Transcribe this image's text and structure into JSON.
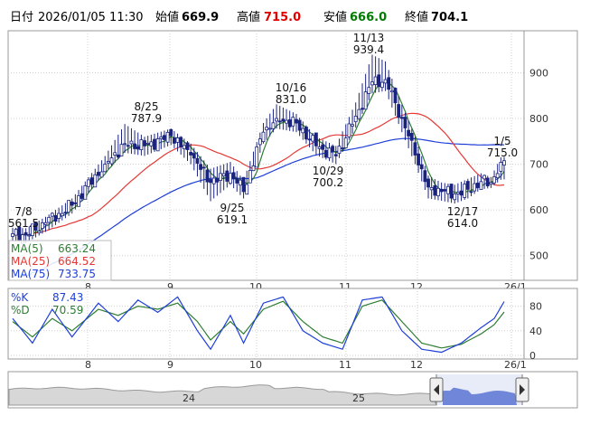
{
  "header": {
    "date_label": "日付",
    "datetime": "2026/01/05 11:30",
    "open_label": "始値",
    "open": "669.9",
    "high_label": "高値",
    "high": "715.0",
    "low_label": "安値",
    "low": "666.0",
    "close_label": "終値",
    "close": "704.1"
  },
  "colors": {
    "up": "#ffffff",
    "down": "#1a237e",
    "candle_border": "#1a237e",
    "ma5": "#2e7d32",
    "ma25": "#e53935",
    "ma75": "#1e3fd8",
    "k": "#1e3fd8",
    "d": "#2e7d32",
    "volume_fill": "#6f86d9"
  },
  "chart_data": [
    {
      "type": "candlestick",
      "ylim": [
        450,
        980
      ],
      "yticks": [
        "500",
        "600",
        "700",
        "800",
        "900"
      ],
      "xticks": [
        "8",
        "9",
        "10",
        "11",
        "12",
        "26/1"
      ],
      "moving_averages": [
        {
          "name": "MA(5)",
          "value": "663.24"
        },
        {
          "name": "MA(25)",
          "value": "664.52"
        },
        {
          "name": "MA(75)",
          "value": "733.75"
        }
      ],
      "annotations": [
        {
          "date": "7/8",
          "value": "561.5"
        },
        {
          "date": "8/25",
          "value": "787.9"
        },
        {
          "date": "9/25",
          "value": "619.1"
        },
        {
          "date": "10/16",
          "value": "831.0"
        },
        {
          "date": "10/29",
          "value": "700.2"
        },
        {
          "date": "11/13",
          "value": "939.4"
        },
        {
          "date": "12/17",
          "value": "614.0"
        },
        {
          "date": "1/5",
          "value": "715.0"
        }
      ],
      "anchors": [
        [
          0,
          548,
          532,
          561
        ],
        [
          4,
          545,
          528,
          560
        ],
        [
          10,
          572,
          552,
          585
        ],
        [
          18,
          610,
          592,
          625
        ],
        [
          28,
          700,
          682,
          718
        ],
        [
          34,
          745,
          725,
          787.9
        ],
        [
          40,
          740,
          718,
          760
        ],
        [
          48,
          762,
          742,
          778
        ],
        [
          54,
          720,
          700,
          745
        ],
        [
          60,
          660,
          619.1,
          690
        ],
        [
          66,
          680,
          655,
          705
        ],
        [
          70,
          640,
          625,
          665
        ],
        [
          76,
          770,
          745,
          790
        ],
        [
          80,
          800,
          778,
          831
        ],
        [
          86,
          790,
          770,
          810
        ],
        [
          92,
          740,
          720,
          760
        ],
        [
          98,
          718,
          700.2,
          740
        ],
        [
          104,
          805,
          780,
          835
        ],
        [
          109,
          880,
          855,
          939.4
        ],
        [
          113,
          885,
          860,
          925
        ],
        [
          118,
          800,
          770,
          830
        ],
        [
          122,
          720,
          700,
          760
        ],
        [
          126,
          650,
          625,
          675
        ],
        [
          130,
          640,
          620,
          660
        ],
        [
          134,
          635,
          614,
          655
        ],
        [
          138,
          645,
          625,
          668
        ],
        [
          142,
          662,
          645,
          680
        ],
        [
          145,
          660,
          648,
          672
        ],
        [
          148,
          704.1,
          666,
          715
        ]
      ]
    },
    {
      "type": "line",
      "name": "stochastics",
      "ylim": [
        0,
        100
      ],
      "yticks": [
        "0",
        "40",
        "80"
      ],
      "xticks": [
        "8",
        "9",
        "10",
        "11",
        "12",
        "26/1"
      ],
      "series": [
        {
          "name": "%K",
          "value": "87.43"
        },
        {
          "name": "%D",
          "value": "70.59"
        }
      ],
      "k_anchors": [
        [
          0,
          60
        ],
        [
          6,
          20
        ],
        [
          12,
          75
        ],
        [
          18,
          30
        ],
        [
          26,
          85
        ],
        [
          32,
          55
        ],
        [
          38,
          90
        ],
        [
          44,
          70
        ],
        [
          50,
          95
        ],
        [
          56,
          40
        ],
        [
          60,
          10
        ],
        [
          66,
          65
        ],
        [
          70,
          20
        ],
        [
          76,
          85
        ],
        [
          82,
          95
        ],
        [
          88,
          40
        ],
        [
          94,
          20
        ],
        [
          100,
          10
        ],
        [
          106,
          90
        ],
        [
          112,
          95
        ],
        [
          118,
          40
        ],
        [
          124,
          10
        ],
        [
          130,
          5
        ],
        [
          136,
          20
        ],
        [
          142,
          45
        ],
        [
          146,
          60
        ],
        [
          149,
          87.43
        ]
      ],
      "d_anchors": [
        [
          0,
          55
        ],
        [
          6,
          30
        ],
        [
          12,
          60
        ],
        [
          18,
          40
        ],
        [
          26,
          75
        ],
        [
          32,
          65
        ],
        [
          38,
          80
        ],
        [
          44,
          75
        ],
        [
          50,
          85
        ],
        [
          56,
          55
        ],
        [
          60,
          25
        ],
        [
          66,
          55
        ],
        [
          70,
          35
        ],
        [
          76,
          75
        ],
        [
          82,
          88
        ],
        [
          88,
          55
        ],
        [
          94,
          30
        ],
        [
          100,
          20
        ],
        [
          106,
          80
        ],
        [
          112,
          90
        ],
        [
          118,
          55
        ],
        [
          124,
          20
        ],
        [
          130,
          12
        ],
        [
          136,
          18
        ],
        [
          142,
          35
        ],
        [
          146,
          50
        ],
        [
          149,
          70.59
        ]
      ]
    },
    {
      "type": "area",
      "name": "navigator",
      "xticks": [
        "24",
        "25"
      ],
      "note_shape": "long-range close overview"
    }
  ]
}
